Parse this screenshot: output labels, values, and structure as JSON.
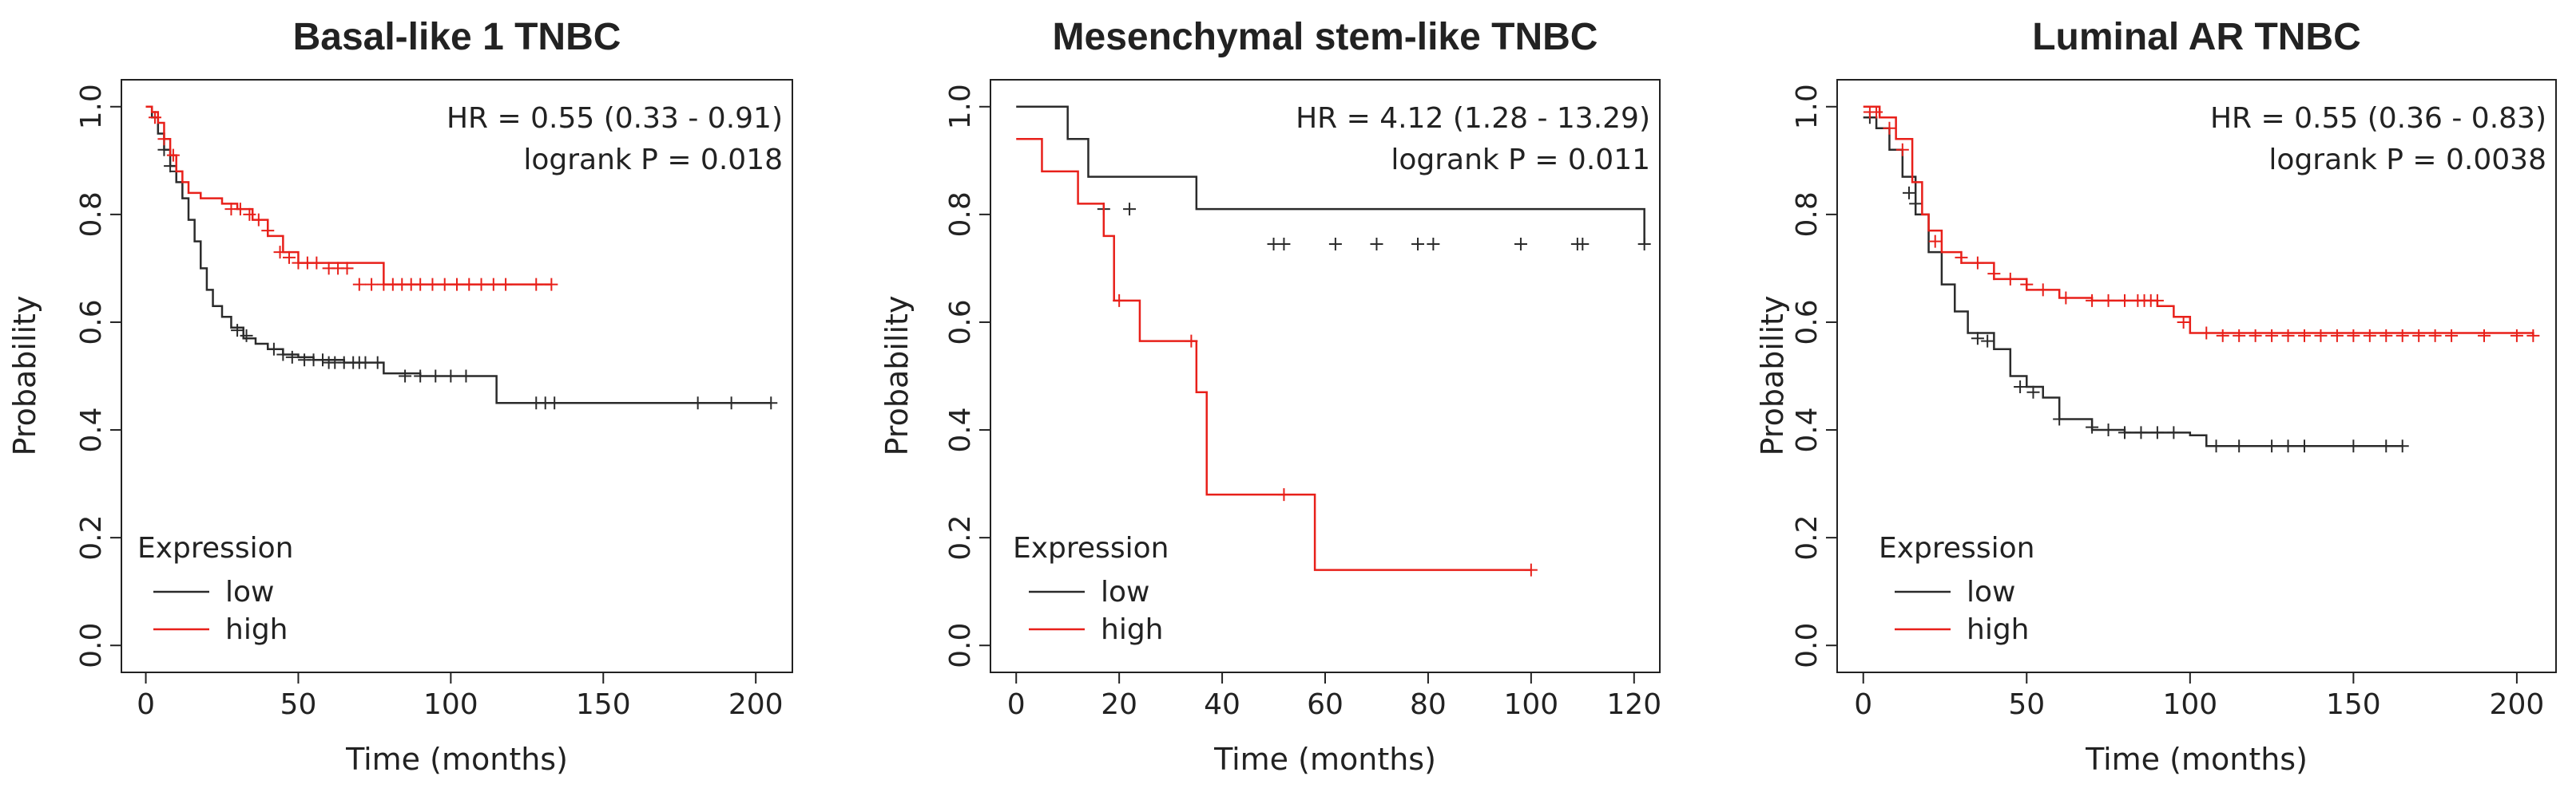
{
  "chart_data": [
    {
      "type": "line",
      "chart_kind": "kaplan-meier",
      "title": "Basal-like 1 TNBC",
      "xlabel": "Time (months)",
      "ylabel": "Probability",
      "xlim": [
        -8,
        212
      ],
      "ylim": [
        -0.05,
        1.05
      ],
      "xticks": [
        0,
        50,
        100,
        150,
        200
      ],
      "xtick_labels": [
        "0",
        "50",
        "100",
        "150",
        "200"
      ],
      "yticks": [
        0,
        0.2,
        0.4,
        0.6,
        0.8,
        1
      ],
      "ytick_labels": [
        "0.0",
        "0.2",
        "0.4",
        "0.6",
        "0.8",
        "1.0"
      ],
      "annotation": {
        "hr": "HR = 0.55 (0.33 - 0.91)",
        "logrank": "logrank P = 0.018"
      },
      "legend": {
        "title": "Expression",
        "position": "lower-left",
        "entries": [
          "low",
          "high"
        ]
      },
      "series": [
        {
          "name": "low",
          "color": "#2b2b2b",
          "x": [
            0,
            2,
            4,
            6,
            8,
            10,
            12,
            14,
            16,
            18,
            20,
            22,
            25,
            28,
            32,
            36,
            40,
            45,
            50,
            55,
            65,
            78,
            90,
            115,
            205
          ],
          "y": [
            1.0,
            0.98,
            0.95,
            0.92,
            0.89,
            0.86,
            0.83,
            0.79,
            0.75,
            0.7,
            0.66,
            0.63,
            0.61,
            0.59,
            0.57,
            0.56,
            0.55,
            0.54,
            0.535,
            0.53,
            0.525,
            0.505,
            0.5,
            0.45,
            0.45
          ],
          "censor_x": [
            6,
            8,
            10,
            30,
            33,
            42,
            45,
            48,
            52,
            55,
            58,
            60,
            62,
            65,
            68,
            70,
            72,
            76,
            85,
            90,
            95,
            100,
            105,
            128,
            131,
            134,
            181,
            192,
            205
          ],
          "censor_y": [
            0.92,
            0.89,
            0.88,
            0.585,
            0.575,
            0.55,
            0.54,
            0.535,
            0.53,
            0.53,
            0.53,
            0.525,
            0.525,
            0.525,
            0.525,
            0.525,
            0.525,
            0.525,
            0.5,
            0.5,
            0.5,
            0.5,
            0.5,
            0.45,
            0.45,
            0.45,
            0.45,
            0.45,
            0.45
          ]
        },
        {
          "name": "high",
          "color": "#e8201a",
          "x": [
            0,
            2,
            4,
            6,
            8,
            10,
            12,
            14,
            18,
            22,
            25,
            30,
            35,
            40,
            45,
            50,
            78,
            133
          ],
          "y": [
            1.0,
            0.99,
            0.97,
            0.94,
            0.91,
            0.88,
            0.86,
            0.84,
            0.83,
            0.83,
            0.82,
            0.81,
            0.79,
            0.76,
            0.73,
            0.71,
            0.67,
            0.67
          ],
          "censor_x": [
            3,
            6,
            9,
            28,
            31,
            34,
            37,
            40,
            44,
            47,
            50,
            53,
            56,
            60,
            63,
            66,
            70,
            74,
            78,
            81,
            84,
            87,
            90,
            94,
            98,
            102,
            106,
            110,
            114,
            118,
            128,
            133
          ],
          "censor_y": [
            0.98,
            0.94,
            0.91,
            0.81,
            0.81,
            0.8,
            0.79,
            0.77,
            0.73,
            0.72,
            0.71,
            0.71,
            0.71,
            0.7,
            0.7,
            0.7,
            0.67,
            0.67,
            0.67,
            0.67,
            0.67,
            0.67,
            0.67,
            0.67,
            0.67,
            0.67,
            0.67,
            0.67,
            0.67,
            0.67,
            0.67,
            0.67
          ]
        }
      ]
    },
    {
      "type": "line",
      "chart_kind": "kaplan-meier",
      "title": "Mesenchymal stem-like TNBC",
      "xlabel": "Time (months)",
      "ylabel": "Probability",
      "xlim": [
        -5,
        125
      ],
      "ylim": [
        -0.05,
        1.05
      ],
      "xticks": [
        0,
        20,
        40,
        60,
        80,
        100,
        120
      ],
      "xtick_labels": [
        "0",
        "20",
        "40",
        "60",
        "80",
        "100",
        "120"
      ],
      "yticks": [
        0,
        0.2,
        0.4,
        0.6,
        0.8,
        1
      ],
      "ytick_labels": [
        "0.0",
        "0.2",
        "0.4",
        "0.6",
        "0.8",
        "1.0"
      ],
      "annotation": {
        "hr": "HR = 4.12 (1.28 - 13.29)",
        "logrank": "logrank P = 0.011"
      },
      "legend": {
        "title": "Expression",
        "position": "lower-left",
        "entries": [
          "low",
          "high"
        ]
      },
      "series": [
        {
          "name": "low",
          "color": "#2b2b2b",
          "x": [
            0,
            10,
            14,
            35,
            122
          ],
          "y": [
            1.0,
            0.94,
            0.87,
            0.81,
            0.745
          ],
          "censor_x": [
            17,
            22,
            50,
            52,
            62,
            70,
            78,
            81,
            98,
            109,
            110,
            122
          ],
          "censor_y": [
            0.81,
            0.81,
            0.745,
            0.745,
            0.745,
            0.745,
            0.745,
            0.745,
            0.745,
            0.745,
            0.745,
            0.745
          ],
          "step_x": [
            0,
            10,
            14,
            35,
            122
          ],
          "step_y": [
            1.0,
            0.94,
            0.87,
            0.81,
            0.745
          ]
        },
        {
          "name": "high",
          "color": "#e8201a",
          "x": [
            0,
            5,
            12,
            17,
            19,
            24,
            35,
            37,
            58,
            100
          ],
          "y": [
            0.94,
            0.88,
            0.82,
            0.76,
            0.64,
            0.565,
            0.47,
            0.28,
            0.14,
            0.14
          ],
          "censor_x": [
            20,
            34,
            52,
            100
          ],
          "censor_y": [
            0.64,
            0.565,
            0.28,
            0.14
          ]
        }
      ]
    },
    {
      "type": "line",
      "chart_kind": "kaplan-meier",
      "title": "Luminal AR TNBC",
      "xlabel": "Time (months)",
      "ylabel": "Probability",
      "xlim": [
        -8,
        212
      ],
      "ylim": [
        -0.05,
        1.05
      ],
      "xticks": [
        0,
        50,
        100,
        150,
        200
      ],
      "xtick_labels": [
        "0",
        "50",
        "100",
        "150",
        "200"
      ],
      "yticks": [
        0,
        0.2,
        0.4,
        0.6,
        0.8,
        1
      ],
      "ytick_labels": [
        "0.0",
        "0.2",
        "0.4",
        "0.6",
        "0.8",
        "1.0"
      ],
      "annotation": {
        "hr": "HR = 0.55 (0.36 - 0.83)",
        "logrank": "logrank P = 0.0038"
      },
      "legend": {
        "title": "Expression",
        "position": "lower-left",
        "entries": [
          "low",
          "high"
        ]
      },
      "series": [
        {
          "name": "low",
          "color": "#2b2b2b",
          "x": [
            0,
            4,
            8,
            12,
            16,
            20,
            24,
            28,
            32,
            40,
            45,
            50,
            55,
            60,
            70,
            80,
            100,
            105,
            165
          ],
          "y": [
            0.98,
            0.96,
            0.92,
            0.87,
            0.8,
            0.73,
            0.67,
            0.62,
            0.58,
            0.55,
            0.5,
            0.48,
            0.46,
            0.42,
            0.4,
            0.395,
            0.39,
            0.37,
            0.37
          ],
          "censor_x": [
            2,
            14,
            16,
            35,
            38,
            48,
            52,
            60,
            70,
            75,
            80,
            85,
            90,
            95,
            108,
            115,
            125,
            130,
            135,
            150,
            160,
            165
          ],
          "censor_y": [
            0.98,
            0.84,
            0.82,
            0.57,
            0.565,
            0.48,
            0.47,
            0.42,
            0.405,
            0.4,
            0.395,
            0.395,
            0.395,
            0.395,
            0.37,
            0.37,
            0.37,
            0.37,
            0.37,
            0.37,
            0.37,
            0.37
          ]
        },
        {
          "name": "high",
          "color": "#e8201a",
          "x": [
            0,
            5,
            10,
            15,
            18,
            20,
            24,
            30,
            40,
            50,
            60,
            70,
            90,
            95,
            100,
            205
          ],
          "y": [
            1.0,
            0.98,
            0.94,
            0.86,
            0.8,
            0.77,
            0.73,
            0.71,
            0.68,
            0.66,
            0.645,
            0.64,
            0.63,
            0.61,
            0.58,
            0.575
          ],
          "censor_x": [
            2,
            4,
            8,
            12,
            22,
            30,
            35,
            40,
            45,
            50,
            55,
            62,
            70,
            75,
            80,
            84,
            86,
            88,
            90,
            98,
            105,
            110,
            115,
            120,
            125,
            130,
            135,
            140,
            145,
            150,
            155,
            160,
            165,
            170,
            175,
            180,
            190,
            200,
            205
          ],
          "censor_y": [
            0.99,
            0.99,
            0.96,
            0.92,
            0.75,
            0.72,
            0.71,
            0.69,
            0.68,
            0.67,
            0.66,
            0.645,
            0.64,
            0.64,
            0.64,
            0.64,
            0.64,
            0.64,
            0.64,
            0.6,
            0.58,
            0.575,
            0.575,
            0.575,
            0.575,
            0.575,
            0.575,
            0.575,
            0.575,
            0.575,
            0.575,
            0.575,
            0.575,
            0.575,
            0.575,
            0.575,
            0.575,
            0.575,
            0.575
          ]
        }
      ]
    }
  ]
}
